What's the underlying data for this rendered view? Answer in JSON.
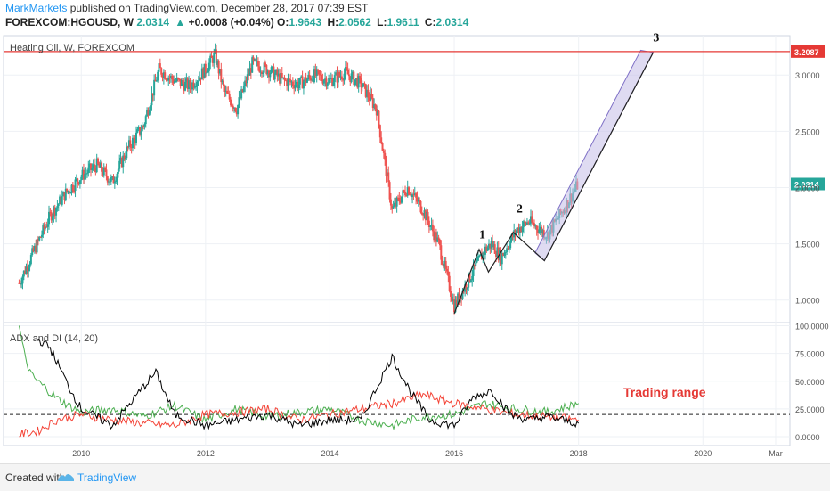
{
  "header": {
    "brand": "MarkMarkets",
    "published": "published on TradingView.com, December 28, 2017 07:39 EST",
    "symbol": "FOREXCOM:HGOUSD, W",
    "last": "2.0314",
    "change": "+0.0008 (+0.04%)",
    "open_label": "O:",
    "open": "1.9643",
    "high_label": "H:",
    "high": "2.0562",
    "low_label": "L:",
    "low": "1.9611",
    "close_label": "C:",
    "close": "2.0314"
  },
  "footer": {
    "created_with": "Created with",
    "brand": "TradingView"
  },
  "colors": {
    "up": "#26a69a",
    "down": "#ef5350",
    "resistance": "#e53935",
    "last_price": "#26a69a",
    "channel_fill": "#c5bde8",
    "di_plus": "#4caf50",
    "di_minus": "#f44336",
    "adx": "#000000",
    "annotation": "#e53935"
  },
  "chart_data": [
    {
      "type": "candlestick",
      "title": "Heating Oil, W, FOREXCOM",
      "y_ticks": [
        "1.0000",
        "1.5000",
        "2.0000",
        "2.5000",
        "3.0000"
      ],
      "y_tick_values": [
        1.0,
        1.5,
        2.0,
        2.5,
        3.0
      ],
      "ylim": [
        0.8,
        3.35
      ],
      "xlim": [
        2008.75,
        2021.4
      ],
      "x_ticks": [
        "2010",
        "2012",
        "2014",
        "2016",
        "2018",
        "2020",
        "Mar"
      ],
      "x_tick_values": [
        2010,
        2012,
        2014,
        2016,
        2018,
        2020,
        2021.17
      ],
      "resistance_level": 3.2087,
      "resistance_label": "3.2087",
      "last_price": 2.0314,
      "last_price_label": "2.0314",
      "price_path": [
        [
          2009.0,
          1.15
        ],
        [
          2009.25,
          1.45
        ],
        [
          2009.5,
          1.75
        ],
        [
          2009.75,
          1.95
        ],
        [
          2010.0,
          2.1
        ],
        [
          2010.25,
          2.2
        ],
        [
          2010.5,
          2.05
        ],
        [
          2010.75,
          2.35
        ],
        [
          2011.0,
          2.55
        ],
        [
          2011.25,
          3.05
        ],
        [
          2011.5,
          2.95
        ],
        [
          2011.75,
          2.9
        ],
        [
          2012.0,
          3.05
        ],
        [
          2012.15,
          3.18
        ],
        [
          2012.3,
          2.85
        ],
        [
          2012.5,
          2.7
        ],
        [
          2012.75,
          3.1
        ],
        [
          2013.0,
          3.05
        ],
        [
          2013.25,
          2.95
        ],
        [
          2013.5,
          2.92
        ],
        [
          2013.75,
          3.0
        ],
        [
          2014.0,
          2.95
        ],
        [
          2014.25,
          3.02
        ],
        [
          2014.5,
          2.92
        ],
        [
          2014.75,
          2.7
        ],
        [
          2015.0,
          1.8
        ],
        [
          2015.25,
          2.0
        ],
        [
          2015.5,
          1.8
        ],
        [
          2015.75,
          1.5
        ],
        [
          2016.0,
          0.95
        ],
        [
          2016.25,
          1.2
        ],
        [
          2016.5,
          1.45
        ],
        [
          2016.6,
          1.5
        ],
        [
          2016.75,
          1.38
        ],
        [
          2017.0,
          1.62
        ],
        [
          2017.2,
          1.7
        ],
        [
          2017.5,
          1.58
        ],
        [
          2017.75,
          1.8
        ],
        [
          2017.99,
          2.03
        ]
      ],
      "wave_path": [
        [
          2016.0,
          0.88
        ],
        [
          2016.4,
          1.45
        ],
        [
          2016.55,
          1.25
        ],
        [
          2016.95,
          1.6
        ],
        [
          2017.45,
          1.35
        ],
        [
          2019.2,
          3.2
        ]
      ],
      "channel": {
        "lower_from": [
          2017.45,
          1.35
        ],
        "lower_to": [
          2019.2,
          3.2
        ],
        "upper_from": [
          2017.3,
          1.42
        ],
        "upper_to": [
          2019.0,
          3.22
        ]
      },
      "wave_labels": [
        {
          "text": "1",
          "x": 2016.45,
          "y": 1.55
        },
        {
          "text": "2",
          "x": 2017.05,
          "y": 1.78
        },
        {
          "text": "3",
          "x": 2019.25,
          "y": 3.3
        }
      ]
    },
    {
      "type": "line",
      "title": "ADX and DI (14, 20)",
      "y_ticks": [
        "0.0000",
        "25.0000",
        "50.0000",
        "75.0000",
        "100.0000"
      ],
      "y_tick_values": [
        0,
        25,
        50,
        75,
        100
      ],
      "ylim": [
        -8,
        102
      ],
      "threshold": 20,
      "annotation": "Trading range",
      "series": [
        {
          "color_key": "di_plus",
          "values": [
            [
              2009.0,
              100
            ],
            [
              2009.1,
              70
            ],
            [
              2009.2,
              55
            ],
            [
              2009.4,
              45
            ],
            [
              2009.6,
              35
            ],
            [
              2009.8,
              28
            ],
            [
              2010.0,
              22
            ],
            [
              2010.5,
              25
            ],
            [
              2011.0,
              18
            ],
            [
              2011.5,
              28
            ],
            [
              2012.0,
              15
            ],
            [
              2012.5,
              25
            ],
            [
              2013.0,
              18
            ],
            [
              2013.5,
              22
            ],
            [
              2014.0,
              25
            ],
            [
              2014.5,
              15
            ],
            [
              2015.0,
              10
            ],
            [
              2015.5,
              18
            ],
            [
              2016.0,
              20
            ],
            [
              2016.5,
              30
            ],
            [
              2017.0,
              25
            ],
            [
              2017.5,
              22
            ],
            [
              2018.0,
              30
            ]
          ]
        },
        {
          "color_key": "di_minus",
          "values": [
            [
              2009.0,
              2
            ],
            [
              2009.3,
              5
            ],
            [
              2009.6,
              15
            ],
            [
              2010.0,
              20
            ],
            [
              2010.5,
              15
            ],
            [
              2011.0,
              12
            ],
            [
              2011.5,
              10
            ],
            [
              2012.0,
              20
            ],
            [
              2012.5,
              22
            ],
            [
              2013.0,
              25
            ],
            [
              2013.5,
              15
            ],
            [
              2014.0,
              20
            ],
            [
              2014.5,
              25
            ],
            [
              2015.0,
              30
            ],
            [
              2015.5,
              38
            ],
            [
              2016.0,
              30
            ],
            [
              2016.5,
              25
            ],
            [
              2017.0,
              20
            ],
            [
              2017.5,
              18
            ],
            [
              2018.0,
              15
            ]
          ]
        },
        {
          "color_key": "adx",
          "values": [
            [
              2009.3,
              88
            ],
            [
              2009.5,
              80
            ],
            [
              2009.8,
              45
            ],
            [
              2010.0,
              25
            ],
            [
              2010.5,
              10
            ],
            [
              2011.0,
              45
            ],
            [
              2011.2,
              58
            ],
            [
              2011.5,
              20
            ],
            [
              2012.0,
              10
            ],
            [
              2012.5,
              15
            ],
            [
              2013.0,
              20
            ],
            [
              2013.5,
              10
            ],
            [
              2014.0,
              15
            ],
            [
              2014.5,
              15
            ],
            [
              2014.8,
              50
            ],
            [
              2015.0,
              72
            ],
            [
              2015.3,
              40
            ],
            [
              2015.6,
              15
            ],
            [
              2016.0,
              10
            ],
            [
              2016.3,
              35
            ],
            [
              2016.6,
              42
            ],
            [
              2016.9,
              20
            ],
            [
              2017.2,
              15
            ],
            [
              2017.5,
              18
            ],
            [
              2018.0,
              12
            ]
          ]
        }
      ]
    }
  ]
}
